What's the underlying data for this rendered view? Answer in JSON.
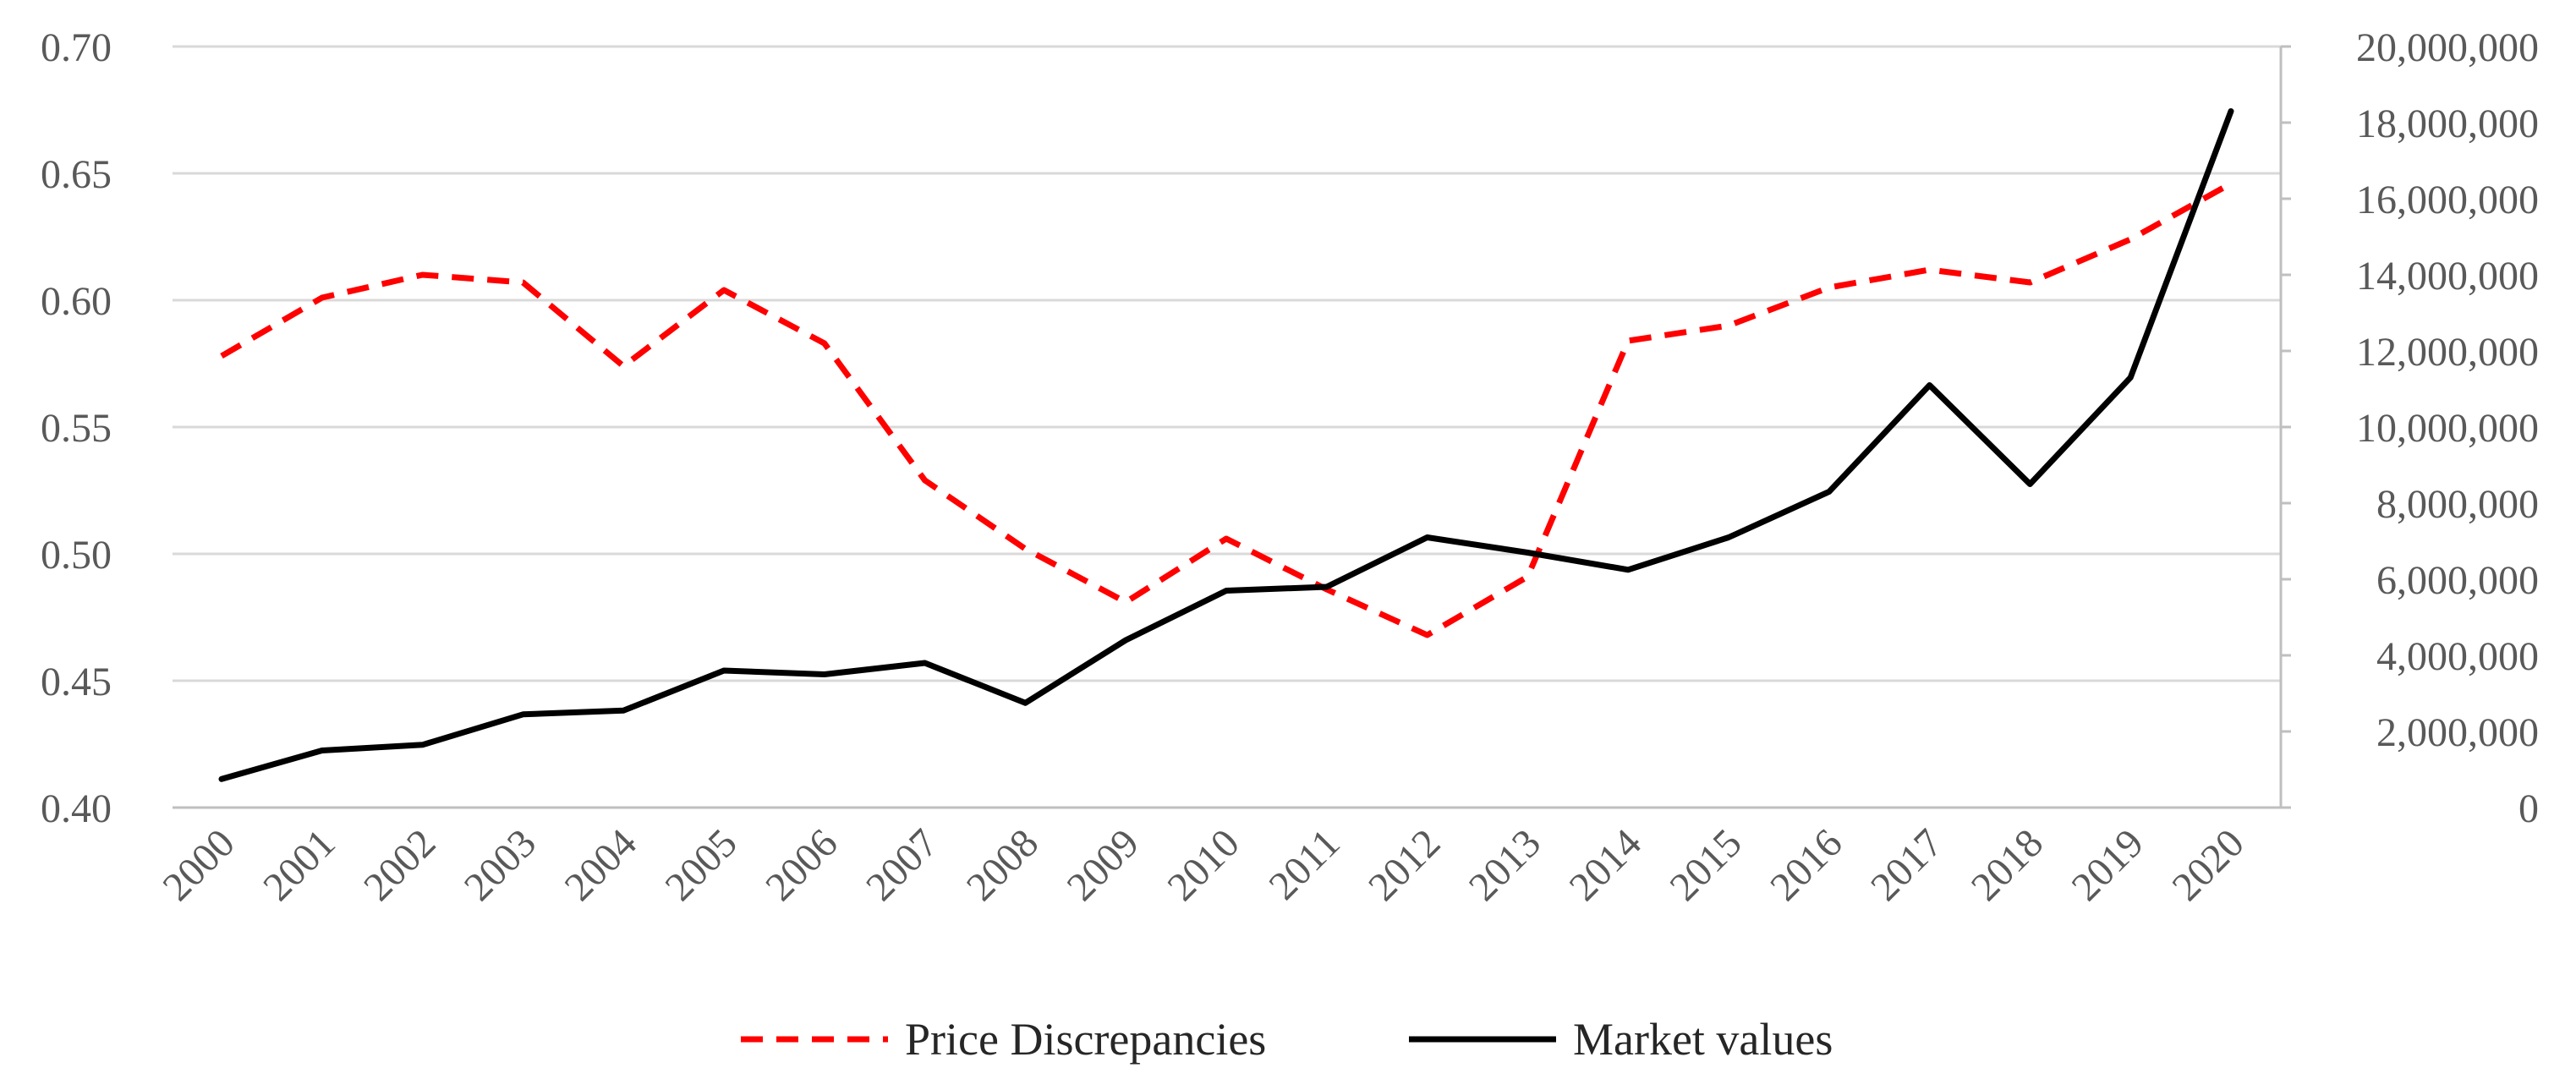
{
  "chart_data": {
    "type": "line",
    "title": "",
    "xlabel": "",
    "ylabel_left": "",
    "ylabel_right": "",
    "categories": [
      "2000",
      "2001",
      "2002",
      "2003",
      "2004",
      "2005",
      "2006",
      "2007",
      "2008",
      "2009",
      "2010",
      "2011",
      "2012",
      "2013",
      "2014",
      "2015",
      "2016",
      "2017",
      "2018",
      "2019",
      "2020"
    ],
    "y_left": {
      "min": 0.4,
      "max": 0.7,
      "step": 0.05,
      "tick_labels": [
        "0.40",
        "0.45",
        "0.50",
        "0.55",
        "0.60",
        "0.65",
        "0.70"
      ]
    },
    "y_right": {
      "min": 0,
      "max": 20000000,
      "step": 2000000,
      "tick_labels": [
        "0",
        "2,000,000",
        "4,000,000",
        "6,000,000",
        "8,000,000",
        "10,000,000",
        "12,000,000",
        "14,000,000",
        "16,000,000",
        "18,000,000",
        "20,000,000"
      ]
    },
    "grid": true,
    "legend_position": "bottom",
    "series": [
      {
        "name": "Price Discrepancies",
        "axis": "left",
        "style": "dashed",
        "color": "#ff0000",
        "values": [
          0.578,
          0.601,
          0.61,
          0.607,
          0.574,
          0.604,
          0.583,
          0.529,
          0.502,
          0.481,
          0.506,
          0.486,
          0.468,
          0.491,
          0.584,
          0.59,
          0.605,
          0.612,
          0.607,
          0.624,
          0.646
        ]
      },
      {
        "name": "Market values",
        "axis": "right",
        "style": "solid",
        "color": "#000000",
        "values": [
          750000,
          1500000,
          1650000,
          2450000,
          2550000,
          3600000,
          3500000,
          3800000,
          2750000,
          4400000,
          5700000,
          5800000,
          7100000,
          6700000,
          6250000,
          7100000,
          8300000,
          11100000,
          8500000,
          11300000,
          18300000
        ]
      }
    ]
  }
}
